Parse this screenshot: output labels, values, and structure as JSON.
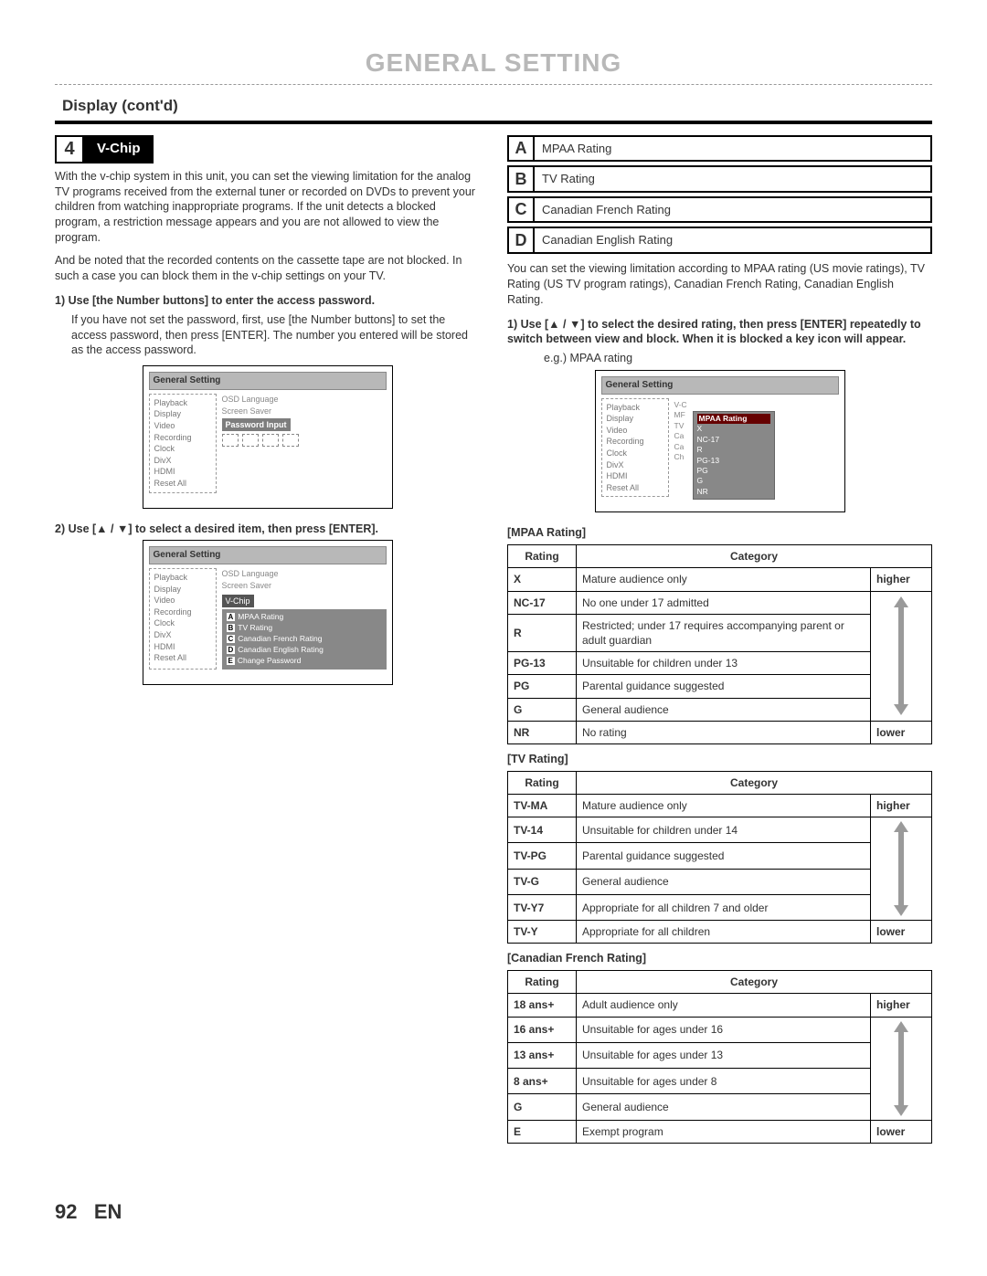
{
  "page_title": "GENERAL SETTING",
  "section_title": "Display (cont'd)",
  "step": {
    "number": "4",
    "label": "V-Chip"
  },
  "left": {
    "intro_p1": "With the v-chip system in this unit, you can set the viewing limitation for the analog TV programs received from the external tuner or recorded on DVDs to prevent your children from watching inappropriate programs. If the unit detects a blocked program, a restriction message appears and you are not allowed to view the program.",
    "intro_p2": "And be noted that the recorded contents on the cassette tape are not blocked. In such a case you can block them in the v-chip settings on your TV.",
    "sub1_title": "1) Use [the Number buttons] to enter the access password.",
    "sub1_desc": "If you have not set the password, first, use [the Number buttons] to set the access password, then press [ENTER]. The number you entered will be stored as the access password.",
    "sub2_title": "2) Use [▲ / ▼] to select a desired item, then press [ENTER]."
  },
  "right": {
    "rating_boxes": [
      {
        "letter": "A",
        "text": "MPAA Rating"
      },
      {
        "letter": "B",
        "text": "TV Rating"
      },
      {
        "letter": "C",
        "text": "Canadian French Rating"
      },
      {
        "letter": "D",
        "text": "Canadian English Rating"
      }
    ],
    "para": "You can set the viewing limitation according to MPAA rating (US movie ratings), TV Rating (US TV program ratings), Canadian French Rating, Canadian English Rating.",
    "sub1_title": "1) Use [▲ / ▼] to select the desired rating, then press [ENTER] repeatedly to switch between view and block. When it is blocked a key icon will appear.",
    "eg_label": "e.g.) MPAA rating"
  },
  "osd": {
    "window_title": "General Setting",
    "menu_items": [
      "Playback",
      "Display",
      "Video",
      "Recording",
      "Clock",
      "DivX",
      "HDMI",
      "Reset All"
    ],
    "right_items": [
      "OSD Language",
      "Screen Saver"
    ],
    "password_label": "Password Input",
    "vchip_label": "V-Chip",
    "submenu": [
      {
        "l": "A",
        "t": "MPAA Rating"
      },
      {
        "l": "B",
        "t": "TV Rating"
      },
      {
        "l": "C",
        "t": "Canadian French Rating"
      },
      {
        "l": "D",
        "t": "Canadian English Rating"
      },
      {
        "l": "E",
        "t": "Change Password"
      }
    ],
    "popup_title": "MPAA Rating",
    "popup_items": [
      "X",
      "NC-17",
      "R",
      "PG-13",
      "PG",
      "G",
      "NR"
    ],
    "tinycols": [
      "V-C",
      "MF",
      "TV",
      "Ca",
      "Ca",
      "Ch"
    ]
  },
  "tables": {
    "mpaa": {
      "title": "[MPAA Rating]",
      "head": [
        "Rating",
        "Category"
      ],
      "top_label": "higher",
      "bot_label": "lower",
      "rows": [
        {
          "r": "X",
          "c": "Mature audience only"
        },
        {
          "r": "NC-17",
          "c": "No one under 17 admitted"
        },
        {
          "r": "R",
          "c": "Restricted; under 17 requires accompanying parent or adult guardian"
        },
        {
          "r": "PG-13",
          "c": "Unsuitable for children under 13"
        },
        {
          "r": "PG",
          "c": "Parental guidance suggested"
        },
        {
          "r": "G",
          "c": "General audience"
        },
        {
          "r": "NR",
          "c": "No rating"
        }
      ]
    },
    "tv": {
      "title": "[TV Rating]",
      "rows": [
        {
          "r": "TV-MA",
          "c": "Mature audience only"
        },
        {
          "r": "TV-14",
          "c": "Unsuitable for children under 14"
        },
        {
          "r": "TV-PG",
          "c": "Parental guidance suggested"
        },
        {
          "r": "TV-G",
          "c": "General audience"
        },
        {
          "r": "TV-Y7",
          "c": "Appropriate for all children 7 and older"
        },
        {
          "r": "TV-Y",
          "c": "Appropriate for all children"
        }
      ]
    },
    "cfr": {
      "title": "[Canadian French Rating]",
      "rows": [
        {
          "r": "18 ans+",
          "c": "Adult audience only"
        },
        {
          "r": "16 ans+",
          "c": "Unsuitable for ages under 16"
        },
        {
          "r": "13 ans+",
          "c": "Unsuitable for ages under 13"
        },
        {
          "r": "8 ans+",
          "c": "Unsuitable for ages under 8"
        },
        {
          "r": "G",
          "c": "General audience"
        },
        {
          "r": "E",
          "c": "Exempt program"
        }
      ]
    }
  },
  "footer": {
    "page": "92",
    "lang": "EN"
  },
  "arrow_color": "#9a9a9a"
}
